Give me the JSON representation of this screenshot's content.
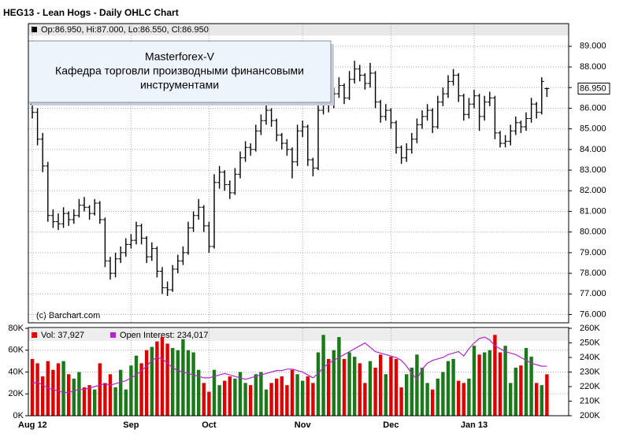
{
  "chart_data": {
    "type": "ohlc",
    "title": "HEG13 - Lean Hogs - Daily OHLC Chart",
    "legend_text": "Op:86.950, Hi:87.000, Lo:86.550, Cl:86.950",
    "last_price_label": "86.950",
    "copyright": "(c) Barchart.com",
    "overlay": {
      "line1": "Masterforex-V",
      "line2": "Кафедра торговли производными финансовыми",
      "line3": "инструментами"
    },
    "categories": [
      "Aug 12",
      null,
      null,
      null,
      null,
      null,
      null,
      null,
      null,
      null,
      null,
      null,
      null,
      null,
      null,
      null,
      null,
      null,
      null,
      "Sep",
      null,
      null,
      null,
      null,
      null,
      null,
      null,
      null,
      null,
      null,
      null,
      null,
      null,
      null,
      "Oct",
      null,
      null,
      null,
      null,
      null,
      null,
      null,
      null,
      null,
      null,
      null,
      null,
      null,
      null,
      null,
      null,
      null,
      "Nov",
      null,
      null,
      null,
      null,
      null,
      null,
      null,
      null,
      null,
      null,
      null,
      null,
      null,
      null,
      null,
      null,
      "Dec",
      null,
      null,
      null,
      null,
      null,
      null,
      null,
      null,
      null,
      null,
      null,
      null,
      null,
      null,
      null,
      "Jan 13",
      null,
      null,
      null,
      null,
      null,
      null,
      null,
      null,
      null,
      null,
      null,
      null,
      null,
      null
    ],
    "ohlc": [
      [
        86.2,
        86.6,
        85.5,
        85.8
      ],
      [
        85.8,
        86.0,
        84.2,
        84.5
      ],
      [
        84.5,
        84.8,
        82.9,
        83.2
      ],
      [
        83.2,
        83.4,
        80.5,
        80.8
      ],
      [
        80.8,
        81.1,
        80.2,
        80.5
      ],
      [
        80.5,
        80.9,
        80.1,
        80.4
      ],
      [
        80.4,
        81.2,
        80.2,
        80.9
      ],
      [
        80.9,
        81.0,
        80.3,
        80.6
      ],
      [
        80.6,
        81.1,
        80.4,
        80.8
      ],
      [
        80.8,
        81.6,
        80.7,
        81.3
      ],
      [
        81.3,
        81.7,
        81.0,
        81.2
      ],
      [
        81.2,
        81.3,
        80.6,
        80.9
      ],
      [
        80.9,
        81.6,
        80.8,
        81.4
      ],
      [
        81.4,
        81.5,
        80.4,
        80.6
      ],
      [
        80.6,
        80.7,
        78.3,
        78.6
      ],
      [
        78.6,
        78.8,
        77.7,
        78.0
      ],
      [
        78.0,
        79.0,
        77.8,
        78.7
      ],
      [
        78.7,
        79.3,
        78.5,
        79.0
      ],
      [
        79.0,
        79.7,
        78.8,
        79.4
      ],
      [
        79.4,
        79.9,
        79.2,
        79.6
      ],
      [
        79.6,
        80.5,
        79.4,
        80.3
      ],
      [
        80.3,
        80.4,
        79.4,
        79.7
      ],
      [
        79.7,
        79.8,
        78.5,
        78.8
      ],
      [
        78.8,
        79.5,
        78.6,
        79.2
      ],
      [
        79.2,
        79.3,
        77.8,
        78.1
      ],
      [
        78.1,
        78.3,
        77.0,
        77.3
      ],
      [
        77.3,
        77.6,
        76.9,
        77.2
      ],
      [
        77.2,
        78.4,
        77.1,
        78.2
      ],
      [
        78.2,
        78.9,
        78.0,
        78.6
      ],
      [
        78.6,
        79.3,
        78.4,
        79.0
      ],
      [
        79.0,
        80.5,
        78.9,
        80.2
      ],
      [
        80.2,
        81.0,
        80.0,
        80.8
      ],
      [
        80.8,
        81.6,
        80.6,
        81.2
      ],
      [
        81.2,
        81.3,
        80.0,
        80.3
      ],
      [
        80.3,
        80.5,
        79.0,
        79.3
      ],
      [
        79.3,
        82.8,
        79.2,
        82.4
      ],
      [
        82.4,
        83.2,
        82.1,
        82.9
      ],
      [
        82.9,
        83.0,
        82.0,
        82.3
      ],
      [
        82.3,
        82.5,
        81.6,
        81.9
      ],
      [
        81.9,
        83.1,
        81.8,
        82.8
      ],
      [
        82.8,
        83.9,
        82.6,
        83.6
      ],
      [
        83.6,
        84.4,
        83.4,
        84.1
      ],
      [
        84.1,
        84.3,
        83.7,
        84.0
      ],
      [
        84.0,
        85.2,
        83.9,
        84.9
      ],
      [
        84.9,
        85.7,
        84.7,
        85.4
      ],
      [
        85.4,
        86.2,
        85.2,
        85.9
      ],
      [
        85.9,
        86.0,
        85.1,
        85.4
      ],
      [
        85.4,
        85.5,
        84.4,
        84.7
      ],
      [
        84.7,
        84.8,
        84.0,
        84.3
      ],
      [
        84.3,
        84.5,
        83.7,
        84.0
      ],
      [
        84.0,
        84.1,
        82.6,
        83.4
      ],
      [
        83.4,
        85.2,
        83.2,
        84.9
      ],
      [
        84.9,
        85.4,
        84.6,
        85.1
      ],
      [
        85.1,
        85.2,
        83.2,
        83.5
      ],
      [
        83.5,
        83.6,
        82.7,
        83.1
      ],
      [
        83.1,
        86.2,
        83.0,
        85.9
      ],
      [
        85.9,
        86.8,
        85.7,
        86.4
      ],
      [
        86.4,
        86.6,
        85.8,
        86.2
      ],
      [
        86.2,
        87.0,
        86.0,
        86.7
      ],
      [
        86.7,
        87.5,
        86.5,
        87.1
      ],
      [
        87.1,
        87.2,
        86.2,
        86.5
      ],
      [
        86.5,
        87.8,
        86.4,
        87.4
      ],
      [
        87.4,
        88.3,
        87.2,
        87.9
      ],
      [
        87.9,
        88.1,
        87.3,
        87.6
      ],
      [
        87.6,
        87.7,
        86.9,
        87.2
      ],
      [
        87.2,
        88.2,
        87.0,
        87.7
      ],
      [
        87.7,
        87.8,
        86.0,
        86.3
      ],
      [
        86.3,
        86.4,
        85.3,
        85.6
      ],
      [
        85.6,
        86.2,
        85.4,
        85.9
      ],
      [
        85.9,
        86.0,
        85.0,
        85.3
      ],
      [
        85.3,
        85.4,
        83.8,
        84.1
      ],
      [
        84.1,
        84.2,
        83.3,
        83.6
      ],
      [
        83.6,
        84.3,
        83.4,
        84.0
      ],
      [
        84.0,
        84.8,
        83.8,
        84.5
      ],
      [
        84.5,
        85.5,
        84.3,
        85.2
      ],
      [
        85.2,
        85.9,
        85.0,
        85.6
      ],
      [
        85.6,
        86.2,
        85.4,
        85.9
      ],
      [
        85.9,
        86.0,
        84.8,
        85.1
      ],
      [
        85.1,
        86.6,
        85.0,
        86.3
      ],
      [
        86.3,
        87.0,
        86.1,
        86.7
      ],
      [
        86.7,
        87.6,
        86.5,
        87.3
      ],
      [
        87.3,
        87.9,
        87.1,
        87.6
      ],
      [
        87.6,
        87.7,
        86.3,
        86.6
      ],
      [
        86.6,
        86.7,
        85.4,
        85.7
      ],
      [
        85.7,
        86.5,
        85.5,
        86.2
      ],
      [
        86.2,
        86.9,
        86.0,
        86.6
      ],
      [
        86.6,
        86.7,
        84.9,
        85.6
      ],
      [
        85.6,
        86.6,
        85.4,
        86.3
      ],
      [
        86.3,
        86.8,
        86.1,
        86.5
      ],
      [
        86.5,
        86.6,
        84.5,
        84.8
      ],
      [
        84.8,
        84.9,
        84.1,
        84.3
      ],
      [
        84.3,
        84.7,
        84.1,
        84.4
      ],
      [
        84.4,
        85.2,
        84.2,
        84.9
      ],
      [
        84.9,
        85.6,
        84.7,
        85.3
      ],
      [
        85.3,
        85.4,
        84.8,
        85.1
      ],
      [
        85.1,
        85.8,
        84.9,
        85.5
      ],
      [
        85.5,
        86.5,
        85.3,
        86.2
      ],
      [
        86.2,
        86.3,
        85.5,
        85.8
      ],
      [
        85.8,
        87.5,
        85.7,
        87.3
      ],
      [
        86.95,
        87.0,
        86.55,
        86.95
      ]
    ],
    "ylim": [
      75.6,
      90.1
    ],
    "yticks": [
      {
        "value": 76,
        "label": "76.000"
      },
      {
        "value": 77,
        "label": "77.000"
      },
      {
        "value": 78,
        "label": "78.000"
      },
      {
        "value": 79,
        "label": "79.000"
      },
      {
        "value": 80,
        "label": "80.000"
      },
      {
        "value": 81,
        "label": "81.000"
      },
      {
        "value": 82,
        "label": "82.000"
      },
      {
        "value": 83,
        "label": "83.000"
      },
      {
        "value": 84,
        "label": "84.000"
      },
      {
        "value": 85,
        "label": "85.000"
      },
      {
        "value": 86,
        "label": "86.000"
      },
      {
        "value": 87,
        "label": "87.000"
      },
      {
        "value": 88,
        "label": "88.000"
      },
      {
        "value": 89,
        "label": "89.000"
      }
    ],
    "ohlc_color": "#000000",
    "grid": true,
    "volume": {
      "legend_text": "Vol: 37,927",
      "up_color": "#1a7a1a",
      "down_color": "#e00000",
      "values": [
        52000,
        48000,
        36000,
        50000,
        42000,
        48000,
        50000,
        38000,
        34000,
        40000,
        26000,
        28000,
        24000,
        48000,
        30000,
        38000,
        26000,
        42000,
        24000,
        46000,
        55000,
        48000,
        60000,
        63000,
        68000,
        72000,
        66000,
        62000,
        60000,
        70000,
        60000,
        58000,
        42000,
        30000,
        22000,
        42000,
        28000,
        32000,
        36000,
        34000,
        40000,
        30000,
        28000,
        38000,
        40000,
        24000,
        30000,
        34000,
        36000,
        28000,
        42000,
        38000,
        32000,
        36000,
        30000,
        58000,
        74000,
        52000,
        60000,
        72000,
        52000,
        58000,
        54000,
        48000,
        30000,
        50000,
        44000,
        56000,
        38000,
        54000,
        52000,
        26000,
        38000,
        44000,
        56000,
        44000,
        30000,
        24000,
        34000,
        40000,
        50000,
        52000,
        32000,
        30000,
        34000,
        64000,
        56000,
        58000,
        60000,
        74000,
        58000,
        64000,
        30000,
        44000,
        46000,
        62000,
        54000,
        30000,
        28000,
        37927
      ],
      "ylim": [
        0,
        80000
      ],
      "yticks": [
        {
          "value": 0,
          "label": "0K"
        },
        {
          "value": 20000,
          "label": "20K"
        },
        {
          "value": 40000,
          "label": "40K"
        },
        {
          "value": 60000,
          "label": "60K"
        },
        {
          "value": 80000,
          "label": "80K"
        }
      ]
    },
    "open_interest": {
      "legend_text": "Open Interest: 234,017",
      "color": "#b026c8",
      "axis": "y2",
      "values": [
        222000,
        223000,
        221000,
        219000,
        218000,
        217000,
        216000,
        216000,
        217000,
        218000,
        218000,
        219000,
        220000,
        221000,
        222000,
        221000,
        222000,
        223000,
        224000,
        226000,
        228000,
        231000,
        234000,
        238000,
        240000,
        239000,
        236000,
        233000,
        231000,
        230000,
        229000,
        228000,
        227000,
        226000,
        226000,
        227000,
        228000,
        229000,
        228000,
        227000,
        226000,
        225000,
        226000,
        227000,
        228000,
        229000,
        230000,
        231000,
        231000,
        232000,
        232000,
        231000,
        230000,
        228000,
        226000,
        229000,
        233000,
        236000,
        238000,
        240000,
        242000,
        244000,
        246000,
        248000,
        250000,
        247000,
        244000,
        243000,
        242000,
        241000,
        240000,
        238000,
        234000,
        229000,
        225000,
        232000,
        236000,
        238000,
        239000,
        240000,
        242000,
        243000,
        244000,
        241000,
        246000,
        250000,
        253000,
        254000,
        252000,
        248000,
        246000,
        244000,
        243000,
        242000,
        240000,
        238000,
        236000,
        235000,
        234000,
        234017
      ],
      "y2lim": [
        200000,
        260000
      ],
      "y2ticks": [
        {
          "value": 200000,
          "label": "200K"
        },
        {
          "value": 210000,
          "label": "210K"
        },
        {
          "value": 220000,
          "label": "220K"
        },
        {
          "value": 230000,
          "label": "230K"
        },
        {
          "value": 240000,
          "label": "240K"
        },
        {
          "value": 250000,
          "label": "250K"
        },
        {
          "value": 260000,
          "label": "260K"
        }
      ]
    }
  }
}
